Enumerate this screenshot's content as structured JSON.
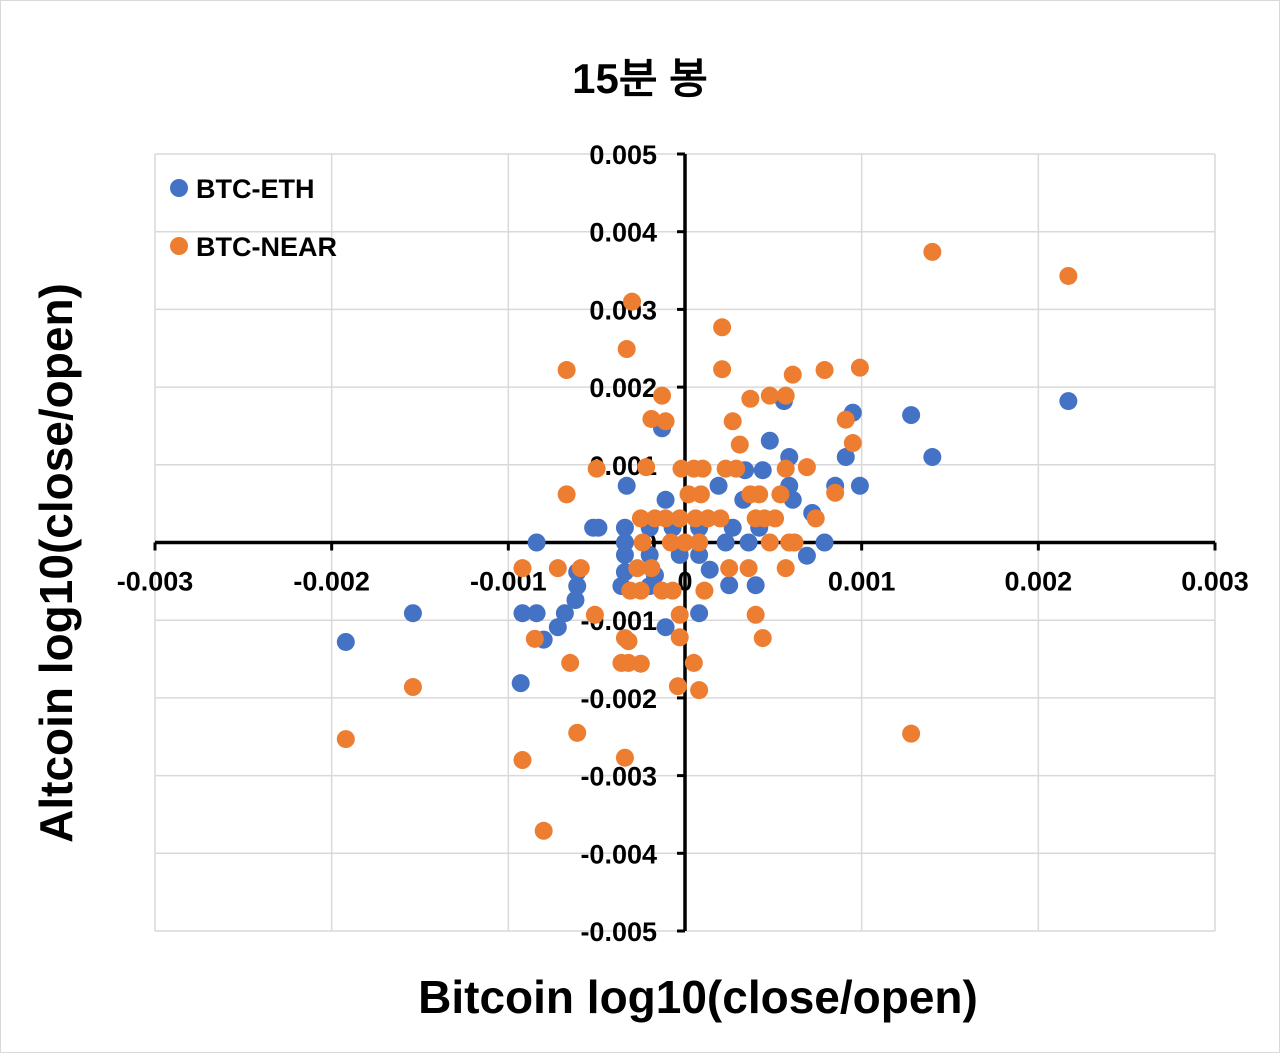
{
  "chart_data": {
    "type": "scatter",
    "title": "15분 봉",
    "xlabel": "Bitcoin log10(close/open)",
    "ylabel": "Altcoin log10(close/open)",
    "xlim": [
      -0.003,
      0.003
    ],
    "ylim": [
      -0.005,
      0.005
    ],
    "x_ticks": [
      "-0.003",
      "-0.002",
      "-0.001",
      "0",
      "0.001",
      "0.002",
      "0.003"
    ],
    "y_ticks": [
      "0.005",
      "0.004",
      "0.003",
      "0.002",
      "0.001",
      "0",
      "-0.001",
      "-0.002",
      "-0.003",
      "-0.004",
      "-0.005"
    ],
    "grid": true,
    "legend_position": "top-left",
    "series": [
      {
        "name": "BTC-ETH",
        "color": "#4472C4",
        "points": [
          [
            0.00217,
            0.00182
          ],
          [
            0.00128,
            0.00164
          ],
          [
            0.00095,
            0.00167
          ],
          [
            0.00056,
            0.00182
          ],
          [
            -0.00013,
            0.00147
          ],
          [
            0.00048,
            0.00131
          ],
          [
            0.0014,
            0.0011
          ],
          [
            0.00091,
            0.0011
          ],
          [
            0.00059,
            0.0011
          ],
          [
            -0.00033,
            0.00073
          ],
          [
            0.00099,
            0.00073
          ],
          [
            0.00085,
            0.00073
          ],
          [
            0.00019,
            0.00073
          ],
          [
            0.00034,
            0.00093
          ],
          [
            0.00044,
            0.00093
          ],
          [
            0.00059,
            0.00073
          ],
          [
            0.00061,
            0.00055
          ],
          [
            -0.00011,
            0.00055
          ],
          [
            0.00033,
            0.00055
          ],
          [
            0.00072,
            0.00038
          ],
          [
            -0.00052,
            0.00019
          ],
          [
            -0.00049,
            0.00019
          ],
          [
            -0.00034,
            0.00019
          ],
          [
            -0.0002,
            0.00019
          ],
          [
            -7e-05,
            0.00019
          ],
          [
            8e-05,
            0.00019
          ],
          [
            0.00027,
            0.00019
          ],
          [
            0.00042,
            0.00019
          ],
          [
            -0.00084,
            0
          ],
          [
            -0.00034,
            0
          ],
          [
            8e-05,
            0
          ],
          [
            0.00023,
            0
          ],
          [
            0.00036,
            0
          ],
          [
            0.00079,
            0
          ],
          [
            -0.00034,
            -0.00016
          ],
          [
            -0.0002,
            -0.00016
          ],
          [
            -3e-05,
            -0.00016
          ],
          [
            8e-05,
            -0.00016
          ],
          [
            0.00069,
            -0.00017
          ],
          [
            -0.00061,
            -0.00038
          ],
          [
            -0.00034,
            -0.00038
          ],
          [
            -0.00017,
            -0.00042
          ],
          [
            0.00014,
            -0.00035
          ],
          [
            -0.00061,
            -0.00056
          ],
          [
            -0.00036,
            -0.00056
          ],
          [
            -0.0002,
            -0.00056
          ],
          [
            0.00025,
            -0.00055
          ],
          [
            0.0004,
            -0.00055
          ],
          [
            -0.00062,
            -0.00074
          ],
          [
            -0.00154,
            -0.00091
          ],
          [
            -0.00092,
            -0.00091
          ],
          [
            -0.00084,
            -0.00091
          ],
          [
            -0.00068,
            -0.00091
          ],
          [
            8e-05,
            -0.00091
          ],
          [
            -0.00072,
            -0.00109
          ],
          [
            -0.00011,
            -0.00109
          ],
          [
            -0.0008,
            -0.00125
          ],
          [
            -0.00192,
            -0.00128
          ],
          [
            -0.00093,
            -0.00181
          ]
        ]
      },
      {
        "name": "BTC-NEAR",
        "color": "#ED7D31",
        "points": [
          [
            0.0014,
            0.00374
          ],
          [
            0.00217,
            0.00343
          ],
          [
            -0.0003,
            0.0031
          ],
          [
            0.00021,
            0.00277
          ],
          [
            -0.00033,
            0.00249
          ],
          [
            -0.00067,
            0.00222
          ],
          [
            0.00021,
            0.00223
          ],
          [
            0.00061,
            0.00216
          ],
          [
            0.00079,
            0.00222
          ],
          [
            0.00099,
            0.00225
          ],
          [
            -0.00013,
            0.00189
          ],
          [
            0.00037,
            0.00185
          ],
          [
            0.00048,
            0.00189
          ],
          [
            0.00057,
            0.00189
          ],
          [
            -0.00019,
            0.00159
          ],
          [
            -0.00011,
            0.00156
          ],
          [
            0.00027,
            0.00156
          ],
          [
            0.00091,
            0.00158
          ],
          [
            0.00031,
            0.00126
          ],
          [
            0.00095,
            0.00128
          ],
          [
            -0.0005,
            0.00095
          ],
          [
            -0.00022,
            0.00097
          ],
          [
            -2e-05,
            0.00095
          ],
          [
            5e-05,
            0.00095
          ],
          [
            0.0001,
            0.00095
          ],
          [
            0.00023,
            0.00095
          ],
          [
            0.00029,
            0.00095
          ],
          [
            0.00057,
            0.00095
          ],
          [
            0.00069,
            0.00097
          ],
          [
            -0.00067,
            0.00062
          ],
          [
            2e-05,
            0.00062
          ],
          [
            9e-05,
            0.00062
          ],
          [
            0.00037,
            0.00062
          ],
          [
            0.00042,
            0.00062
          ],
          [
            0.00054,
            0.00062
          ],
          [
            0.00085,
            0.00064
          ],
          [
            0.00074,
            0.00031
          ],
          [
            -0.00025,
            0.00031
          ],
          [
            -0.00017,
            0.00031
          ],
          [
            -0.00011,
            0.00031
          ],
          [
            -3e-05,
            0.00031
          ],
          [
            6e-05,
            0.00031
          ],
          [
            0.00013,
            0.00031
          ],
          [
            0.0002,
            0.00031
          ],
          [
            0.0004,
            0.00031
          ],
          [
            0.00045,
            0.00031
          ],
          [
            0.00051,
            0.00031
          ],
          [
            -0.00024,
            0
          ],
          [
            -8e-05,
            0
          ],
          [
            0,
            0
          ],
          [
            8e-05,
            0
          ],
          [
            0.00048,
            0
          ],
          [
            0.00059,
            0
          ],
          [
            0.00062,
            0
          ],
          [
            -0.00092,
            -0.00033
          ],
          [
            -0.00072,
            -0.00033
          ],
          [
            -0.00059,
            -0.00033
          ],
          [
            -0.00027,
            -0.00033
          ],
          [
            -0.00019,
            -0.00033
          ],
          [
            0.00025,
            -0.00033
          ],
          [
            0.00036,
            -0.00033
          ],
          [
            0.00057,
            -0.00033
          ],
          [
            -0.00031,
            -0.00062
          ],
          [
            -0.00025,
            -0.00062
          ],
          [
            -0.00013,
            -0.00062
          ],
          [
            -7e-05,
            -0.00062
          ],
          [
            0.00011,
            -0.00062
          ],
          [
            -0.00051,
            -0.00093
          ],
          [
            -3e-05,
            -0.00093
          ],
          [
            0.0004,
            -0.00093
          ],
          [
            -0.00085,
            -0.00124
          ],
          [
            -0.00034,
            -0.00123
          ],
          [
            -0.00032,
            -0.00127
          ],
          [
            0.00044,
            -0.00123
          ],
          [
            -3e-05,
            -0.00122
          ],
          [
            -0.00065,
            -0.00155
          ],
          [
            -0.00036,
            -0.00155
          ],
          [
            -0.00032,
            -0.00155
          ],
          [
            -0.00025,
            -0.00156
          ],
          [
            5e-05,
            -0.00155
          ],
          [
            -0.00154,
            -0.00186
          ],
          [
            -4e-05,
            -0.00185
          ],
          [
            8e-05,
            -0.0019
          ],
          [
            -0.00192,
            -0.00253
          ],
          [
            -0.00061,
            -0.00245
          ],
          [
            0.00128,
            -0.00246
          ],
          [
            -0.00092,
            -0.0028
          ],
          [
            -0.00034,
            -0.00277
          ],
          [
            -0.0008,
            -0.00371
          ]
        ]
      }
    ]
  }
}
